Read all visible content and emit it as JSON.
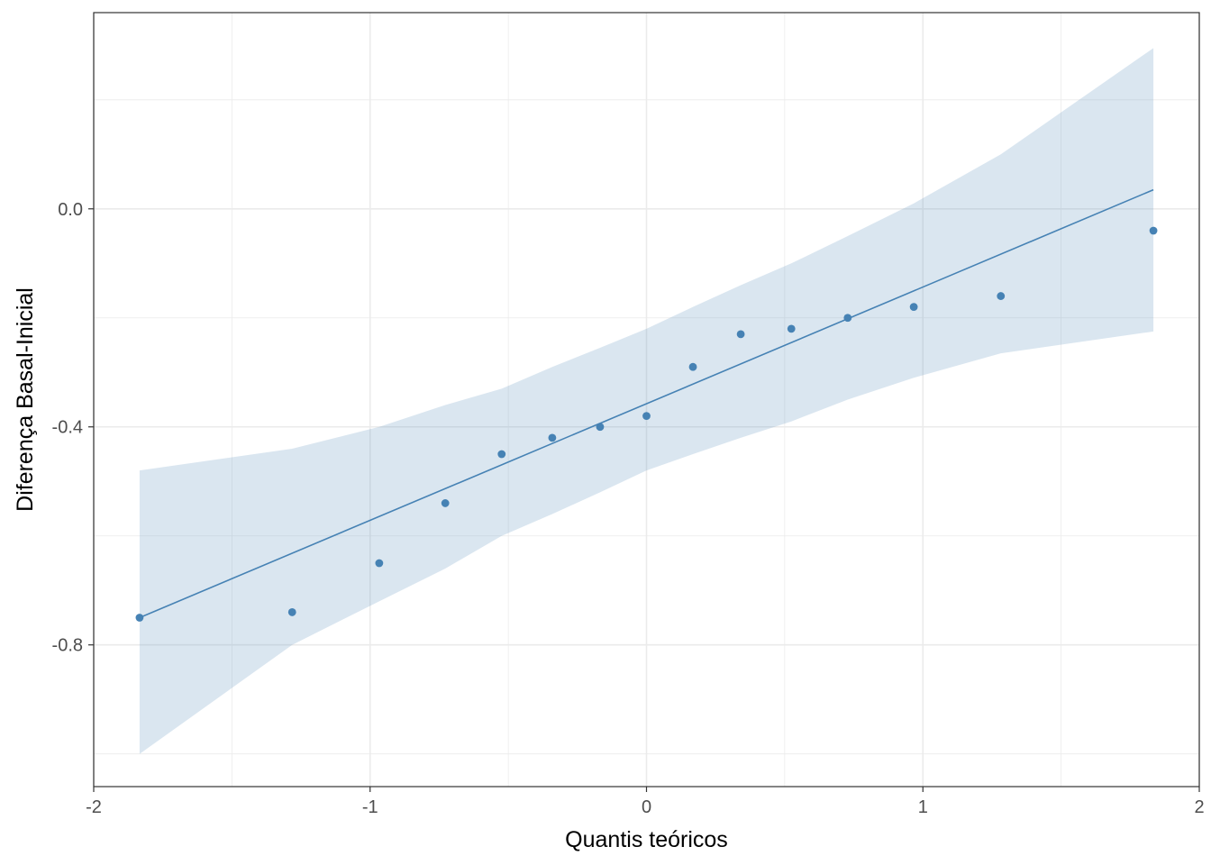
{
  "chart_data": {
    "type": "scatter",
    "subtype": "qq-plot",
    "title": "",
    "xlabel": "Quantis teóricos",
    "ylabel": "Diferença Basal-Inicial",
    "xlim": [
      -2,
      2
    ],
    "ylim": [
      -1.06,
      0.36
    ],
    "x_ticks": [
      -2,
      -1,
      0,
      1,
      2
    ],
    "x_tick_labels": [
      "-2",
      "-1",
      "0",
      "1",
      "2"
    ],
    "y_ticks": [
      -0.8,
      -0.4,
      0.0
    ],
    "y_tick_labels": [
      "-0.8",
      "-0.4",
      "0.0"
    ],
    "grid": true,
    "legend": "none",
    "colors": {
      "points": "#4682b4",
      "line": "#4682b4",
      "band": "#4682b4",
      "grid": "#ebebeb",
      "border": "#333333"
    },
    "points": [
      {
        "x": -1.834,
        "y": -0.75
      },
      {
        "x": -1.282,
        "y": -0.74
      },
      {
        "x": -0.967,
        "y": -0.65
      },
      {
        "x": -0.728,
        "y": -0.54
      },
      {
        "x": -0.524,
        "y": -0.45
      },
      {
        "x": -0.341,
        "y": -0.42
      },
      {
        "x": -0.168,
        "y": -0.4
      },
      {
        "x": 0.0,
        "y": -0.38
      },
      {
        "x": 0.168,
        "y": -0.29
      },
      {
        "x": 0.341,
        "y": -0.23
      },
      {
        "x": 0.524,
        "y": -0.22
      },
      {
        "x": 0.728,
        "y": -0.2
      },
      {
        "x": 0.967,
        "y": -0.18
      },
      {
        "x": 1.282,
        "y": -0.16
      },
      {
        "x": 1.834,
        "y": -0.04
      }
    ],
    "reference_line": {
      "x": [
        -1.834,
        1.834
      ],
      "y": [
        -0.75,
        0.035
      ]
    },
    "confidence_band": {
      "x": [
        -1.834,
        -1.282,
        -0.967,
        -0.728,
        -0.524,
        -0.341,
        -0.168,
        0.0,
        0.168,
        0.341,
        0.524,
        0.728,
        0.967,
        1.282,
        1.834
      ],
      "upper": [
        -0.48,
        -0.44,
        -0.4,
        -0.36,
        -0.33,
        -0.29,
        -0.255,
        -0.22,
        -0.18,
        -0.14,
        -0.1,
        -0.05,
        0.01,
        0.1,
        0.295
      ],
      "lower": [
        -1.0,
        -0.8,
        -0.72,
        -0.66,
        -0.6,
        -0.56,
        -0.52,
        -0.48,
        -0.45,
        -0.42,
        -0.39,
        -0.35,
        -0.31,
        -0.265,
        -0.225
      ]
    }
  }
}
